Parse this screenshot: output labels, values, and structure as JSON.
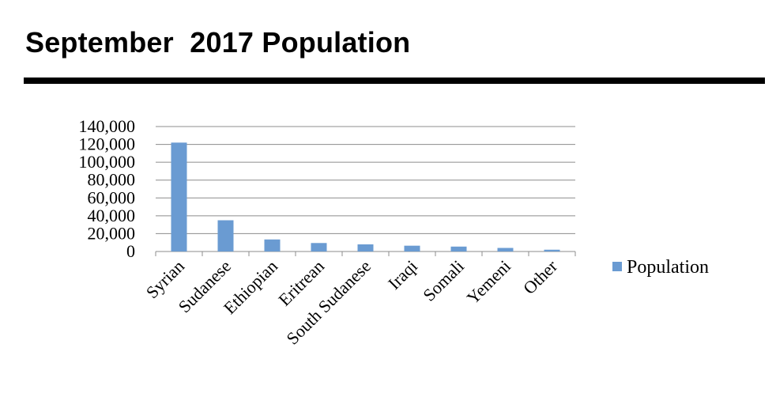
{
  "title": "September  2017 Population",
  "chart_data": {
    "type": "bar",
    "categories": [
      "Syrian",
      "Sudanese",
      "Ethiopian",
      "Eritrean",
      "South Sudanese",
      "Iraqi",
      "Somali",
      "Yemeni",
      "Other"
    ],
    "series": [
      {
        "name": "Population",
        "values": [
          122000,
          35000,
          13500,
          9500,
          8000,
          6500,
          5500,
          4000,
          2000
        ],
        "color": "#6a9bd2"
      }
    ],
    "y_ticks": [
      "0",
      "20,000",
      "40,000",
      "60,000",
      "80,000",
      "100,000",
      "120,000",
      "140,000"
    ],
    "ylim": [
      0,
      140000
    ],
    "grid": true,
    "legend": "right"
  }
}
